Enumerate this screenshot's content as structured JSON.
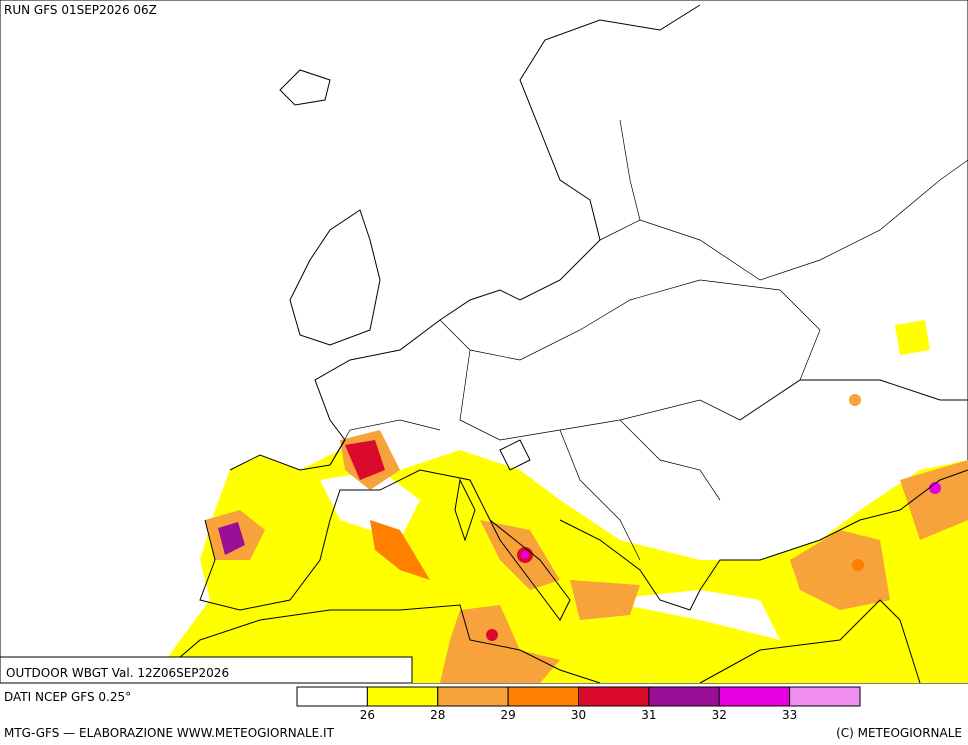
{
  "header": {
    "run": "RUN GFS 01SEP2026 06Z"
  },
  "title": "OUTDOOR WBGT Val. 12Z06SEP2026",
  "source": "DATI NCEP GFS 0.25°",
  "footer": {
    "left": "MTG-GFS — ELABORAZIONE WWW.METEOGIORNALE.IT",
    "right": "(C) METEOGIORNALE"
  },
  "legend": {
    "ticks": [
      26,
      28,
      29,
      30,
      31,
      32,
      33
    ],
    "colors": [
      "#ffffff",
      "#ffff00",
      "#f7a23a",
      "#ff7f00",
      "#dc0a2a",
      "#9a0f96",
      "#e800e0",
      "#f08ef0"
    ]
  }
}
